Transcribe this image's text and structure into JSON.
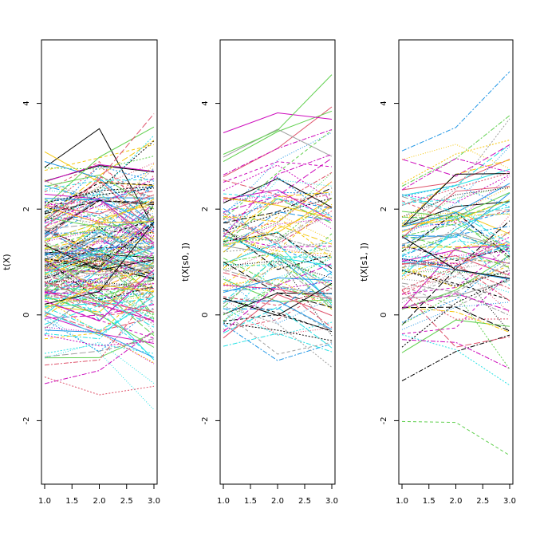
{
  "chart_data": [
    {
      "type": "line",
      "ylabel": "t(X)",
      "xlim": [
        1,
        3
      ],
      "ylim": [
        -3.2,
        5.2
      ],
      "x_ticks": [
        "1.0",
        "1.5",
        "2.0",
        "2.5",
        "3.0"
      ],
      "y_ticks": [
        "-2",
        "0",
        "2",
        "4"
      ],
      "grid": false,
      "series_count": 200
    },
    {
      "type": "line",
      "ylabel": "t(X[s0, ])",
      "xlim": [
        1,
        3
      ],
      "ylim": [
        -3.2,
        5.2
      ],
      "x_ticks": [
        "1.0",
        "1.5",
        "2.0",
        "2.5",
        "3.0"
      ],
      "y_ticks": [
        "-2",
        "0",
        "2",
        "4"
      ],
      "grid": false,
      "series_count": 100
    },
    {
      "type": "line",
      "ylabel": "t(X[s1, ])",
      "xlim": [
        1,
        3
      ],
      "ylim": [
        -3.2,
        5.2
      ],
      "x_ticks": [
        "1.0",
        "1.5",
        "2.0",
        "2.5",
        "3.0"
      ],
      "y_ticks": [
        "-2",
        "0",
        "2",
        "4"
      ],
      "grid": false,
      "series_count": 100
    }
  ],
  "colors": [
    "#000000",
    "#DF536B",
    "#61D04F",
    "#2297E6",
    "#28E2E5",
    "#CD0BBC",
    "#F5C710",
    "#9E9E9E"
  ]
}
